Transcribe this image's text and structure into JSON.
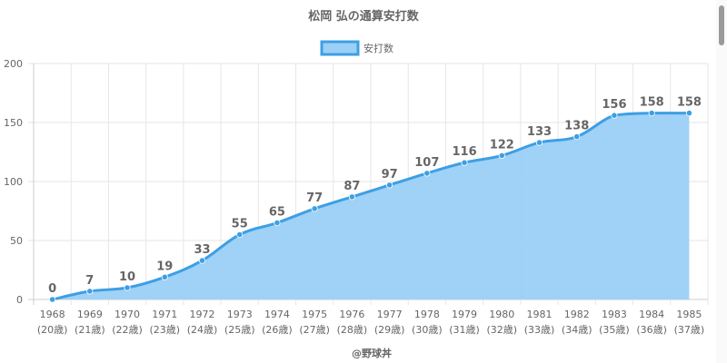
{
  "chart_data": {
    "type": "area",
    "title": "松岡 弘の通算安打数",
    "legend": {
      "label": "安打数",
      "position": "top"
    },
    "xlabel": "",
    "ylabel": "",
    "ylim": [
      0,
      200
    ],
    "yticks": [
      "0",
      "50",
      "100",
      "150",
      "200"
    ],
    "grid": true,
    "categories": [
      "1968",
      "1969",
      "1970",
      "1971",
      "1972",
      "1973",
      "1974",
      "1975",
      "1976",
      "1977",
      "1978",
      "1979",
      "1980",
      "1981",
      "1982",
      "1983",
      "1984",
      "1985"
    ],
    "ages": [
      "(20歳)",
      "(21歳)",
      "(22歳)",
      "(23歳)",
      "(24歳)",
      "(25歳)",
      "(26歳)",
      "(27歳)",
      "(28歳)",
      "(29歳)",
      "(30歳)",
      "(31歳)",
      "(32歳)",
      "(33歳)",
      "(34歳)",
      "(35歳)",
      "(36歳)",
      "(37歳)"
    ],
    "series": [
      {
        "name": "安打数",
        "values": [
          0,
          7,
          10,
          19,
          33,
          55,
          65,
          77,
          87,
          97,
          107,
          116,
          122,
          133,
          138,
          156,
          158,
          158
        ]
      }
    ],
    "colors": {
      "line": "#3d9fe4",
      "fill": "#9bcff5",
      "grid": "#e6e6e6",
      "axis": "#cccccc",
      "label": "#666666"
    }
  },
  "credit": "@野球丼"
}
